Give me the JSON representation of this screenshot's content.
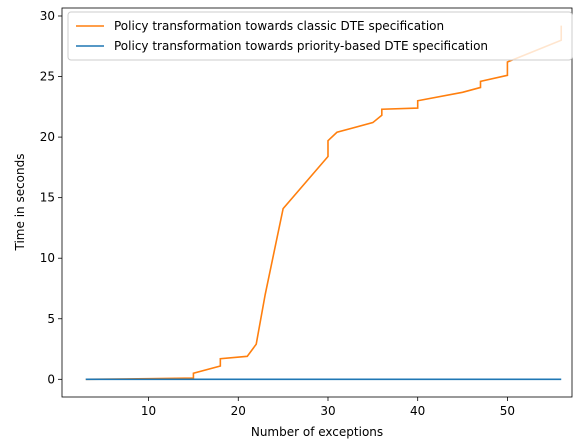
{
  "chart_data": {
    "type": "line",
    "xlabel": "Number of exceptions",
    "ylabel": "Time in seconds",
    "xlim": [
      0.35,
      57.2
    ],
    "xticks": [
      10,
      20,
      30,
      40,
      50
    ],
    "ylim": [
      -1.46,
      30.66
    ],
    "yticks": [
      0,
      5,
      10,
      15,
      20,
      25,
      30
    ],
    "grid": false,
    "legend": "upper left",
    "series": [
      {
        "name": "Policy transformation towards classic DTE specification",
        "color": "#ff7f0e",
        "x": [
          3,
          10,
          15,
          15,
          18,
          18,
          21,
          22,
          23,
          25,
          30,
          30,
          31,
          35,
          36,
          36,
          40,
          40,
          45,
          47,
          47,
          50,
          50,
          52,
          56,
          56
        ],
        "values": [
          0,
          0.05,
          0.1,
          0.5,
          1.1,
          1.7,
          1.9,
          2.9,
          7,
          14.1,
          18.4,
          19.7,
          20.4,
          21.2,
          21.8,
          22.3,
          22.4,
          23,
          23.7,
          24.1,
          24.6,
          25.1,
          26.2,
          26.8,
          28,
          29.2
        ]
      },
      {
        "name": "Policy transformation towards priority-based DTE specification",
        "color": "#1f77b4",
        "x": [
          3,
          15,
          30,
          45,
          56
        ],
        "values": [
          0,
          0,
          0,
          0,
          0
        ]
      }
    ]
  }
}
